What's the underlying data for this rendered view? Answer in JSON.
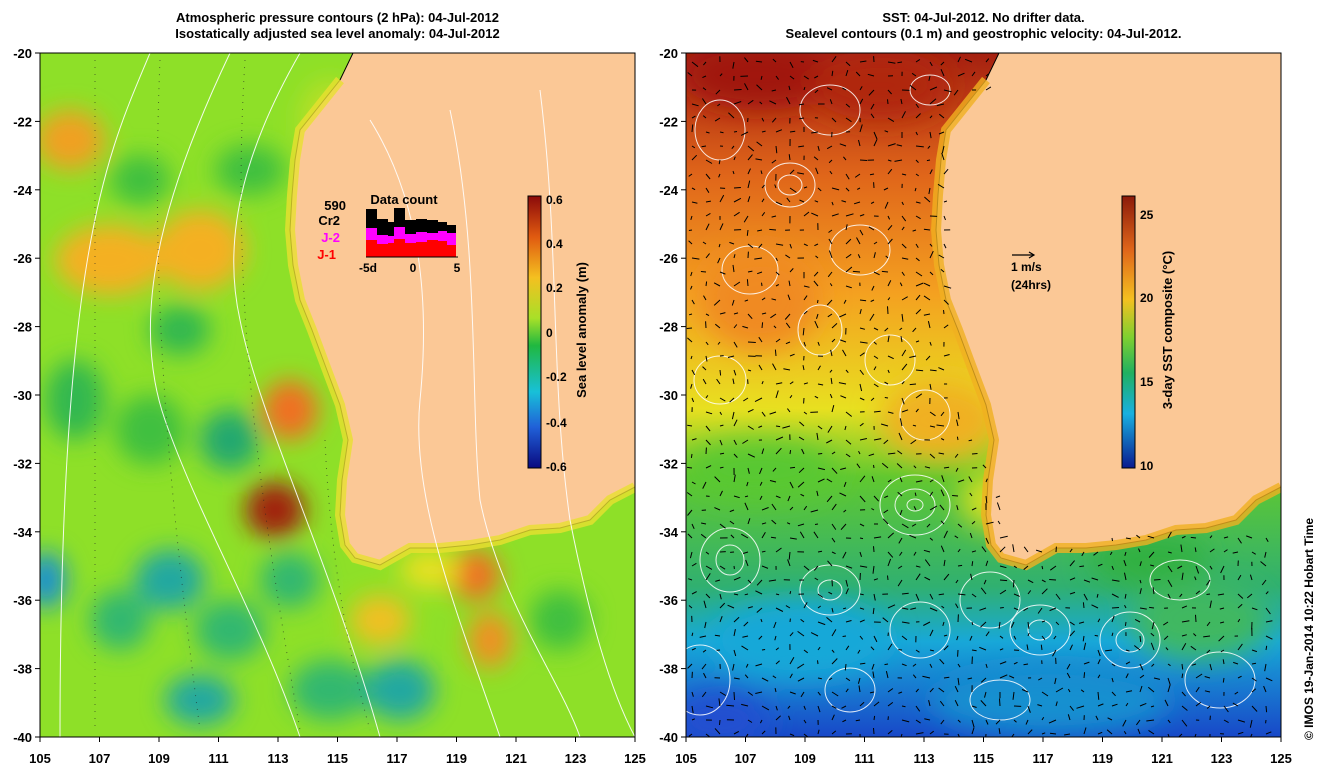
{
  "left_panel": {
    "title_line1": "Atmospheric pressure contours (2 hPa): 04-Jul-2012",
    "title_line2": "Isostatically adjusted sea level anomaly: 04-Jul-2012",
    "colorbar": {
      "label": "Sea level anomaly (m)",
      "ticks": [
        "0.6",
        "0.4",
        "0.2",
        "0",
        "-0.2",
        "-0.4",
        "-0.6"
      ]
    },
    "data_count": {
      "title": "Data count",
      "count": "590",
      "sats": [
        "Cr2",
        "J-2",
        "J-1"
      ],
      "sat_colors": [
        "#000000",
        "#ff00ff",
        "#ff0000"
      ],
      "xticks": [
        "-5d",
        "0",
        "5"
      ]
    },
    "hotspots": [
      {
        "lon": 112.9,
        "lat": -33.4,
        "sla": 0.55
      },
      {
        "lon": 113.0,
        "lat": -30.5,
        "sla": 0.35
      },
      {
        "lon": 120.2,
        "lat": -37.3,
        "sla": 0.3
      },
      {
        "lon": 105.6,
        "lat": -22.3,
        "sla": 0.28
      },
      {
        "lon": 110.5,
        "lat": -26.0,
        "sla": 0.25
      },
      {
        "lon": 105.1,
        "lat": -35.3,
        "sla": -0.25
      }
    ]
  },
  "right_panel": {
    "title_line1": "SST: 04-Jul-2012. No drifter data.",
    "title_line2": "Sealevel contours (0.1 m) and geostrophic velocity: 04-Jul-2012.",
    "colorbar": {
      "label": "3-day SST composite (°C)",
      "ticks": [
        "25",
        "20",
        "15",
        "10"
      ]
    },
    "velocity_scale": {
      "label": "1 m/s",
      "sublabel": "(24hrs)"
    }
  },
  "axes": {
    "lon_min": 105,
    "lon_max": 125,
    "lat_min": -40,
    "lat_max": -20,
    "x_ticks": [
      "105",
      "107",
      "109",
      "111",
      "113",
      "115",
      "117",
      "119",
      "121",
      "123",
      "125"
    ],
    "y_ticks": [
      "-20",
      "-22",
      "-24",
      "-26",
      "-28",
      "-30",
      "-32",
      "-34",
      "-36",
      "-38",
      "-40"
    ]
  },
  "credit": "© IMOS 19-Jan-2014 10:22 Hobart Time",
  "colors": {
    "land": "#fbc896",
    "ocean_sla_base": "#8ee028",
    "coast": "#000000",
    "contour": "#ffffff"
  }
}
